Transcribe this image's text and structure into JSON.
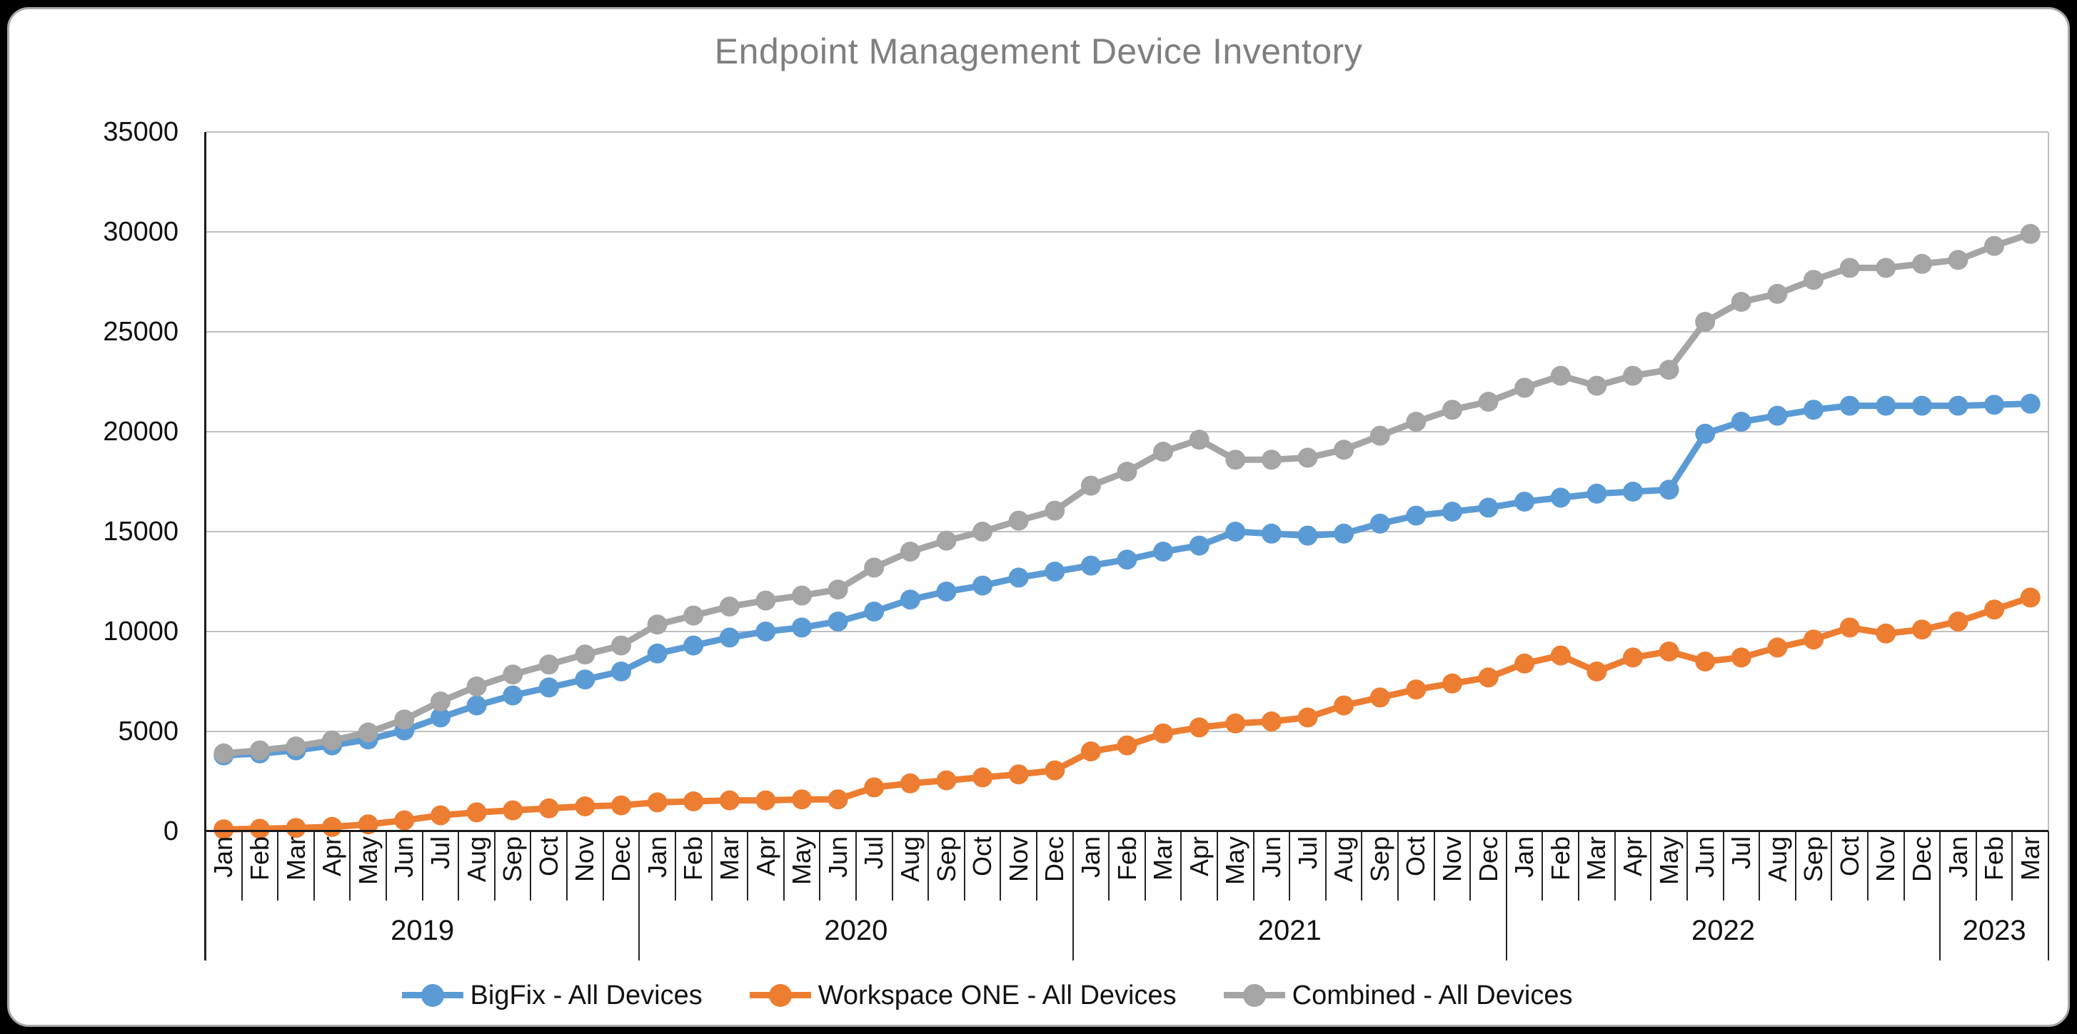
{
  "window": {
    "background_color": "#000000",
    "card_background_color": "#FFFFFF"
  },
  "chart_data": {
    "type": "line",
    "title": "Endpoint Management Device Inventory",
    "title_color": "#7F7F7F",
    "xlabel": "",
    "ylabel": "",
    "legend_position": "bottom",
    "grid": true,
    "gridline_color": "#BFBFBF",
    "y_axis": {
      "min": 0,
      "max": 35000,
      "step": 5000,
      "ticks": [
        0,
        5000,
        10000,
        15000,
        20000,
        25000,
        30000,
        35000
      ],
      "tick_labels": [
        "0",
        "5000",
        "10000",
        "15000",
        "20000",
        "25000",
        "30000",
        "35000"
      ]
    },
    "x_axis": {
      "years": [
        {
          "label": "2019",
          "months": [
            "Jan",
            "Feb",
            "Mar",
            "Apr",
            "May",
            "Jun",
            "Jul",
            "Aug",
            "Sep",
            "Oct",
            "Nov",
            "Dec"
          ]
        },
        {
          "label": "2020",
          "months": [
            "Jan",
            "Feb",
            "Mar",
            "Apr",
            "May",
            "Jun",
            "Jul",
            "Aug",
            "Sep",
            "Oct",
            "Nov",
            "Dec"
          ]
        },
        {
          "label": "2021",
          "months": [
            "Jan",
            "Feb",
            "Mar",
            "Apr",
            "May",
            "Jun",
            "Jul",
            "Aug",
            "Sep",
            "Oct",
            "Nov",
            "Dec"
          ]
        },
        {
          "label": "2022",
          "months": [
            "Jan",
            "Feb",
            "Mar",
            "Apr",
            "May",
            "Jun",
            "Jul",
            "Aug",
            "Sep",
            "Oct",
            "Nov",
            "Dec"
          ]
        },
        {
          "label": "2023",
          "months": [
            "Jan",
            "Feb",
            "Mar"
          ]
        }
      ]
    },
    "series": [
      {
        "name": "BigFix - All Devices",
        "color": "#5B9BD5",
        "values": [
          3800,
          3900,
          4050,
          4300,
          4600,
          5050,
          5700,
          6300,
          6800,
          7200,
          7600,
          8000,
          8900,
          9300,
          9700,
          10000,
          10200,
          10500,
          11000,
          11600,
          12000,
          12300,
          12700,
          13000,
          13300,
          13600,
          14000,
          14300,
          15000,
          14900,
          14800,
          14900,
          15400,
          15800,
          16000,
          16200,
          16500,
          16700,
          16900,
          17000,
          17100,
          19900,
          20500,
          20800,
          21100,
          21300,
          21300,
          21300,
          21300,
          21350,
          21400
        ]
      },
      {
        "name": "Workspace ONE - All Devices",
        "color": "#ED7D31",
        "values": [
          100,
          130,
          170,
          220,
          350,
          550,
          800,
          950,
          1050,
          1150,
          1250,
          1300,
          1450,
          1500,
          1550,
          1550,
          1600,
          1600,
          2200,
          2400,
          2550,
          2700,
          2850,
          3050,
          4000,
          4300,
          4900,
          5200,
          5400,
          5500,
          5700,
          6300,
          6700,
          7100,
          7400,
          7700,
          8400,
          8800,
          8000,
          8700,
          9000,
          8500,
          8700,
          9200,
          9600,
          10200,
          9900,
          10100,
          10500,
          11100,
          11700
        ]
      },
      {
        "name": "Combined - All Devices",
        "color": "#A5A5A5",
        "values": [
          3900,
          4050,
          4250,
          4550,
          4950,
          5600,
          6500,
          7250,
          7850,
          8350,
          8850,
          9300,
          10350,
          10800,
          11250,
          11550,
          11800,
          12100,
          13200,
          14000,
          14550,
          15000,
          15550,
          16050,
          17300,
          18000,
          19000,
          19600,
          18600,
          18600,
          18700,
          19100,
          19800,
          20500,
          21100,
          21500,
          22200,
          22800,
          22300,
          22800,
          23100,
          25500,
          26500,
          26900,
          27600,
          28200,
          28200,
          28400,
          28600,
          29300,
          29900
        ]
      }
    ]
  }
}
